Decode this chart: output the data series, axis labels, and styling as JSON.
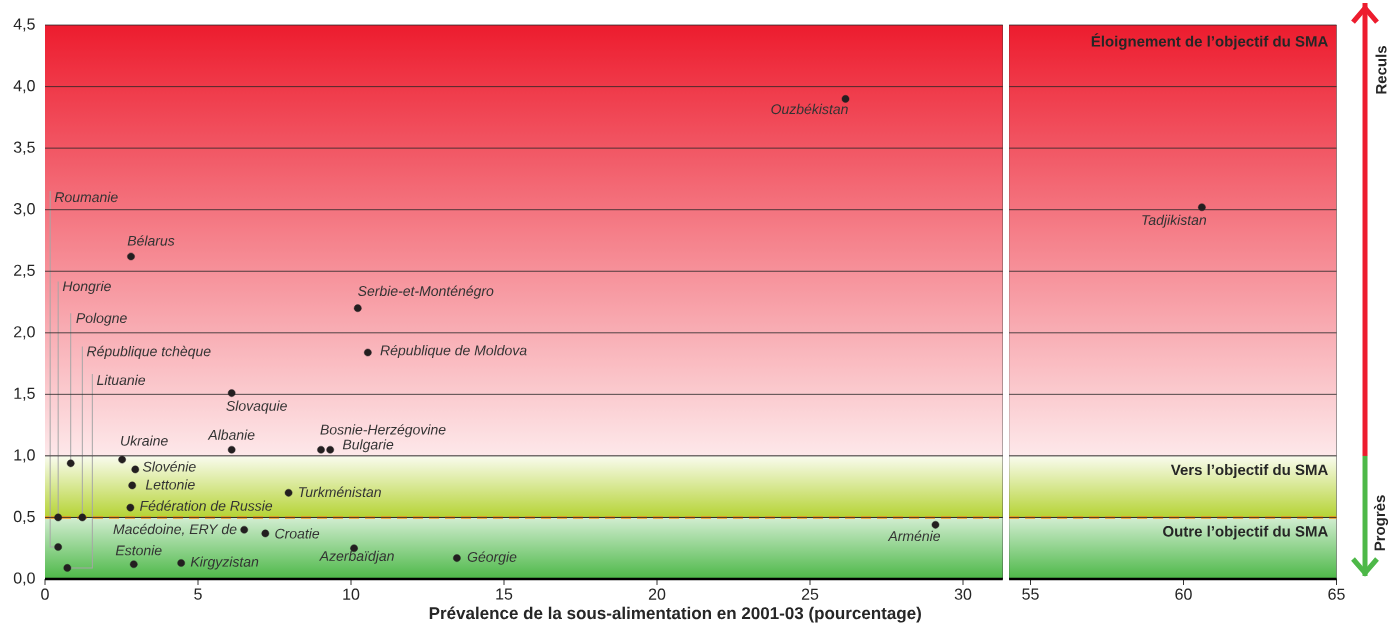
{
  "chart_data": [
    {
      "type": "scatter",
      "xlabel": "Prévalence de la sous-alimentation en 2001-03 (pourcentage)",
      "xlim": [
        0,
        31.3
      ],
      "ylim": [
        0,
        4.5
      ],
      "xticks": [
        0,
        5,
        10,
        15,
        20,
        25,
        30
      ],
      "yticks": [
        {
          "value": 0,
          "label": "0,0"
        },
        {
          "value": 0.5,
          "label": "0,5"
        },
        {
          "value": 1,
          "label": "1,0"
        },
        {
          "value": 1.5,
          "label": "1,5"
        },
        {
          "value": 2,
          "label": "2,0"
        },
        {
          "value": 2.5,
          "label": "2,5"
        },
        {
          "value": 3,
          "label": "3,0"
        },
        {
          "value": 3.5,
          "label": "3,5"
        },
        {
          "value": 4,
          "label": "4,0"
        },
        {
          "value": 4.5,
          "label": "4,5"
        }
      ],
      "grid": "y",
      "marker": "circle",
      "series": [
        {
          "color": "#231f20",
          "x": [
            0.43,
            0.43,
            0.84,
            1.22,
            0.73,
            2.81,
            10.22,
            10.55,
            6.1,
            2.52,
            6.1,
            9.02,
            9.32,
            2.95,
            2.85,
            7.96,
            2.79,
            6.51,
            7.2,
            2.9,
            4.45,
            10.1,
            13.46,
            26.16,
            29.1
          ],
          "values": [
            0.26,
            0.5,
            0.94,
            0.5,
            0.09,
            2.62,
            2.2,
            1.84,
            1.51,
            0.97,
            1.05,
            1.05,
            1.05,
            0.89,
            0.76,
            0.7,
            0.58,
            0.4,
            0.37,
            0.12,
            0.13,
            0.25,
            0.17,
            3.9,
            0.44
          ]
        }
      ],
      "ref_lines": [
        {
          "axis": "y",
          "value": 0.5,
          "color": "#f7941d",
          "line_style": "dashed"
        }
      ],
      "bands": [
        {
          "axis": "y",
          "from": 1,
          "to": 4.5,
          "color": "#ed1c2e"
        },
        {
          "axis": "y",
          "from": 0.5,
          "to": 1,
          "color": "#b5d334"
        },
        {
          "axis": "y",
          "from": 0,
          "to": 0.5,
          "color": "#4db848"
        }
      ],
      "annotations": [
        {
          "text": "Roumanie",
          "x": 0.43,
          "y": 0.26
        },
        {
          "text": "Hongrie",
          "x": 0.43,
          "y": 0.5
        },
        {
          "text": "Pologne",
          "x": 0.84,
          "y": 0.94
        },
        {
          "text": "République tchèque",
          "x": 1.22,
          "y": 0.5
        },
        {
          "text": "Lituanie",
          "x": 0.73,
          "y": 0.09
        },
        {
          "text": "Bélarus",
          "x": 2.81,
          "y": 2.62
        },
        {
          "text": "Serbie-et-Monténégro",
          "x": 10.22,
          "y": 2.2
        },
        {
          "text": "République de Moldova",
          "x": 10.55,
          "y": 1.84
        },
        {
          "text": "Slovaquie",
          "x": 6.1,
          "y": 1.51
        },
        {
          "text": "Ukraine",
          "x": 2.52,
          "y": 0.97
        },
        {
          "text": "Albanie",
          "x": 6.1,
          "y": 1.05
        },
        {
          "text": "Bosnie-Herzégovine",
          "x": 9.02,
          "y": 1.05
        },
        {
          "text": "Bulgarie",
          "x": 9.32,
          "y": 1.05
        },
        {
          "text": "Slovénie",
          "x": 2.95,
          "y": 0.89
        },
        {
          "text": "Lettonie",
          "x": 2.85,
          "y": 0.76
        },
        {
          "text": "Turkménistan",
          "x": 7.96,
          "y": 0.7
        },
        {
          "text": "Fédération de Russie",
          "x": 2.79,
          "y": 0.58
        },
        {
          "text": "Macédoine, ERY de",
          "x": 6.51,
          "y": 0.4
        },
        {
          "text": "Croatie",
          "x": 7.2,
          "y": 0.37
        },
        {
          "text": "Estonie",
          "x": 2.9,
          "y": 0.12
        },
        {
          "text": "Kirgyzistan",
          "x": 4.45,
          "y": 0.13
        },
        {
          "text": "Azerbaïdjan",
          "x": 10.1,
          "y": 0.25
        },
        {
          "text": "Géorgie",
          "x": 13.46,
          "y": 0.17
        },
        {
          "text": "Ouzbékistan",
          "x": 26.16,
          "y": 3.9
        },
        {
          "text": "Arménie",
          "x": 29.1,
          "y": 0.44
        }
      ]
    },
    {
      "type": "scatter",
      "xlim": [
        54.3,
        65
      ],
      "ylim": [
        0,
        4.5
      ],
      "xticks": [
        55,
        60,
        65
      ],
      "yticks": [
        {
          "value": 0,
          "label": null
        },
        {
          "value": 0.5,
          "label": null
        },
        {
          "value": 1,
          "label": null
        },
        {
          "value": 1.5,
          "label": null
        },
        {
          "value": 2,
          "label": null
        },
        {
          "value": 2.5,
          "label": null
        },
        {
          "value": 3,
          "label": null
        },
        {
          "value": 3.5,
          "label": null
        },
        {
          "value": 4,
          "label": null
        },
        {
          "value": 4.5,
          "label": null
        }
      ],
      "tick_labels": "x",
      "grid": "y",
      "marker": "circle",
      "series": [
        {
          "color": "#231f20",
          "x": [
            60.6
          ],
          "values": [
            3.02
          ]
        }
      ],
      "ref_lines": [
        {
          "axis": "y",
          "value": 0.5,
          "color": "#f7941d",
          "line_style": "dashed"
        }
      ],
      "bands": [
        {
          "axis": "y",
          "from": 1,
          "to": 4.5,
          "color": "#ed1c2e",
          "label": "Éloignement de l’objectif du SMA"
        },
        {
          "axis": "y",
          "from": 0.5,
          "to": 1,
          "color": "#b5d334",
          "label": "Vers l’objectif du SMA"
        },
        {
          "axis": "y",
          "from": 0,
          "to": 0.5,
          "color": "#4db848",
          "label": "Outre l’objectif du SMA"
        }
      ],
      "annotations": [
        {
          "text": "Tadjikistan",
          "x": 60.6,
          "y": 3.02
        },
        "Reculs",
        "Progrès"
      ]
    }
  ]
}
